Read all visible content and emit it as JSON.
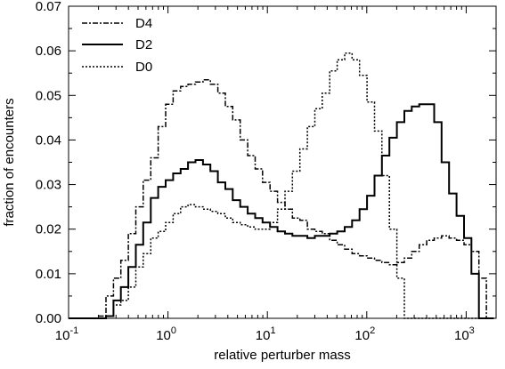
{
  "chart_data": {
    "type": "line",
    "xlabel": "relative perturber mass",
    "ylabel": "fraction of encounters",
    "x_scale": "log",
    "xlim": [
      0.1,
      2000
    ],
    "ylim": [
      0,
      0.07
    ],
    "x_tick_values": [
      0.1,
      1,
      10,
      100,
      1000
    ],
    "x_tick_labels": [
      {
        "base": "10",
        "exp": "-1"
      },
      {
        "base": "10",
        "exp": "0"
      },
      {
        "base": "10",
        "exp": "1"
      },
      {
        "base": "10",
        "exp": "2"
      },
      {
        "base": "10",
        "exp": "3"
      }
    ],
    "y_tick_values": [
      0,
      0.01,
      0.02,
      0.03,
      0.04,
      0.05,
      0.06,
      0.07
    ],
    "y_tick_labels": [
      "0.00",
      "0.01",
      "0.02",
      "0.03",
      "0.04",
      "0.05",
      "0.06",
      "0.07"
    ],
    "grid": false,
    "legend_position": "top-left",
    "x": [
      0.1,
      0.119,
      0.141,
      0.168,
      0.2,
      0.238,
      0.283,
      0.336,
      0.399,
      0.475,
      0.564,
      0.671,
      0.797,
      0.947,
      1.126,
      1.339,
      1.591,
      1.891,
      2.248,
      2.671,
      3.175,
      3.774,
      4.486,
      5.332,
      6.338,
      7.533,
      8.954,
      10.64,
      12.65,
      15.04,
      17.87,
      21.24,
      25.25,
      30.01,
      35.67,
      42.4,
      50.39,
      59.9,
      71.19,
      84.62,
      100.6,
      119.6,
      142.1,
      168.9,
      200.8,
      238.7,
      283.7,
      337.2,
      400.8,
      476.4,
      566.2,
      673.0,
      800.0,
      950.9,
      1130.2,
      1343.4,
      1596.8
    ],
    "series": [
      {
        "name": "D4",
        "style": "dashdot",
        "values": [
          0.0,
          0.0,
          0.0,
          0.0,
          0.0005,
          0.005,
          0.009,
          0.013,
          0.019,
          0.025,
          0.031,
          0.036,
          0.043,
          0.048,
          0.051,
          0.052,
          0.0525,
          0.053,
          0.0535,
          0.0525,
          0.0505,
          0.0475,
          0.0445,
          0.04,
          0.0365,
          0.0335,
          0.0305,
          0.0285,
          0.026,
          0.0245,
          0.0225,
          0.022,
          0.02,
          0.0195,
          0.019,
          0.0175,
          0.0165,
          0.0155,
          0.0145,
          0.014,
          0.0135,
          0.013,
          0.0125,
          0.012,
          0.0125,
          0.0135,
          0.015,
          0.0165,
          0.0175,
          0.018,
          0.0185,
          0.018,
          0.0175,
          0.0165,
          0.015,
          0.009,
          0.0
        ]
      },
      {
        "name": "D2",
        "style": "solid",
        "values": [
          0.0,
          0.0,
          0.0,
          0.0,
          0.0,
          0.0005,
          0.004,
          0.007,
          0.0115,
          0.0165,
          0.0215,
          0.027,
          0.0295,
          0.031,
          0.0325,
          0.0335,
          0.035,
          0.0355,
          0.0345,
          0.033,
          0.0305,
          0.029,
          0.0265,
          0.025,
          0.0235,
          0.0225,
          0.0215,
          0.0205,
          0.0195,
          0.019,
          0.0185,
          0.0185,
          0.018,
          0.0185,
          0.0185,
          0.019,
          0.0195,
          0.0205,
          0.022,
          0.0245,
          0.0275,
          0.032,
          0.0365,
          0.0405,
          0.044,
          0.0465,
          0.0475,
          0.048,
          0.048,
          0.044,
          0.035,
          0.028,
          0.023,
          0.018,
          0.01,
          0.0,
          0.0
        ]
      },
      {
        "name": "D0",
        "style": "dotted",
        "values": [
          0.0,
          0.0,
          0.0,
          0.0,
          0.0,
          0.0005,
          0.003,
          0.004,
          0.007,
          0.0115,
          0.0145,
          0.018,
          0.0195,
          0.0215,
          0.0235,
          0.025,
          0.0255,
          0.025,
          0.0245,
          0.024,
          0.0235,
          0.0225,
          0.0215,
          0.021,
          0.0205,
          0.02,
          0.02,
          0.0215,
          0.0245,
          0.0285,
          0.033,
          0.038,
          0.043,
          0.047,
          0.0505,
          0.0555,
          0.058,
          0.0595,
          0.058,
          0.0545,
          0.0485,
          0.042,
          0.032,
          0.02,
          0.009,
          0.0,
          0.0,
          0.0,
          0.0,
          0.0,
          0.0,
          0.0,
          0.0,
          0.0,
          0.0,
          0.0,
          0.0
        ]
      }
    ]
  }
}
